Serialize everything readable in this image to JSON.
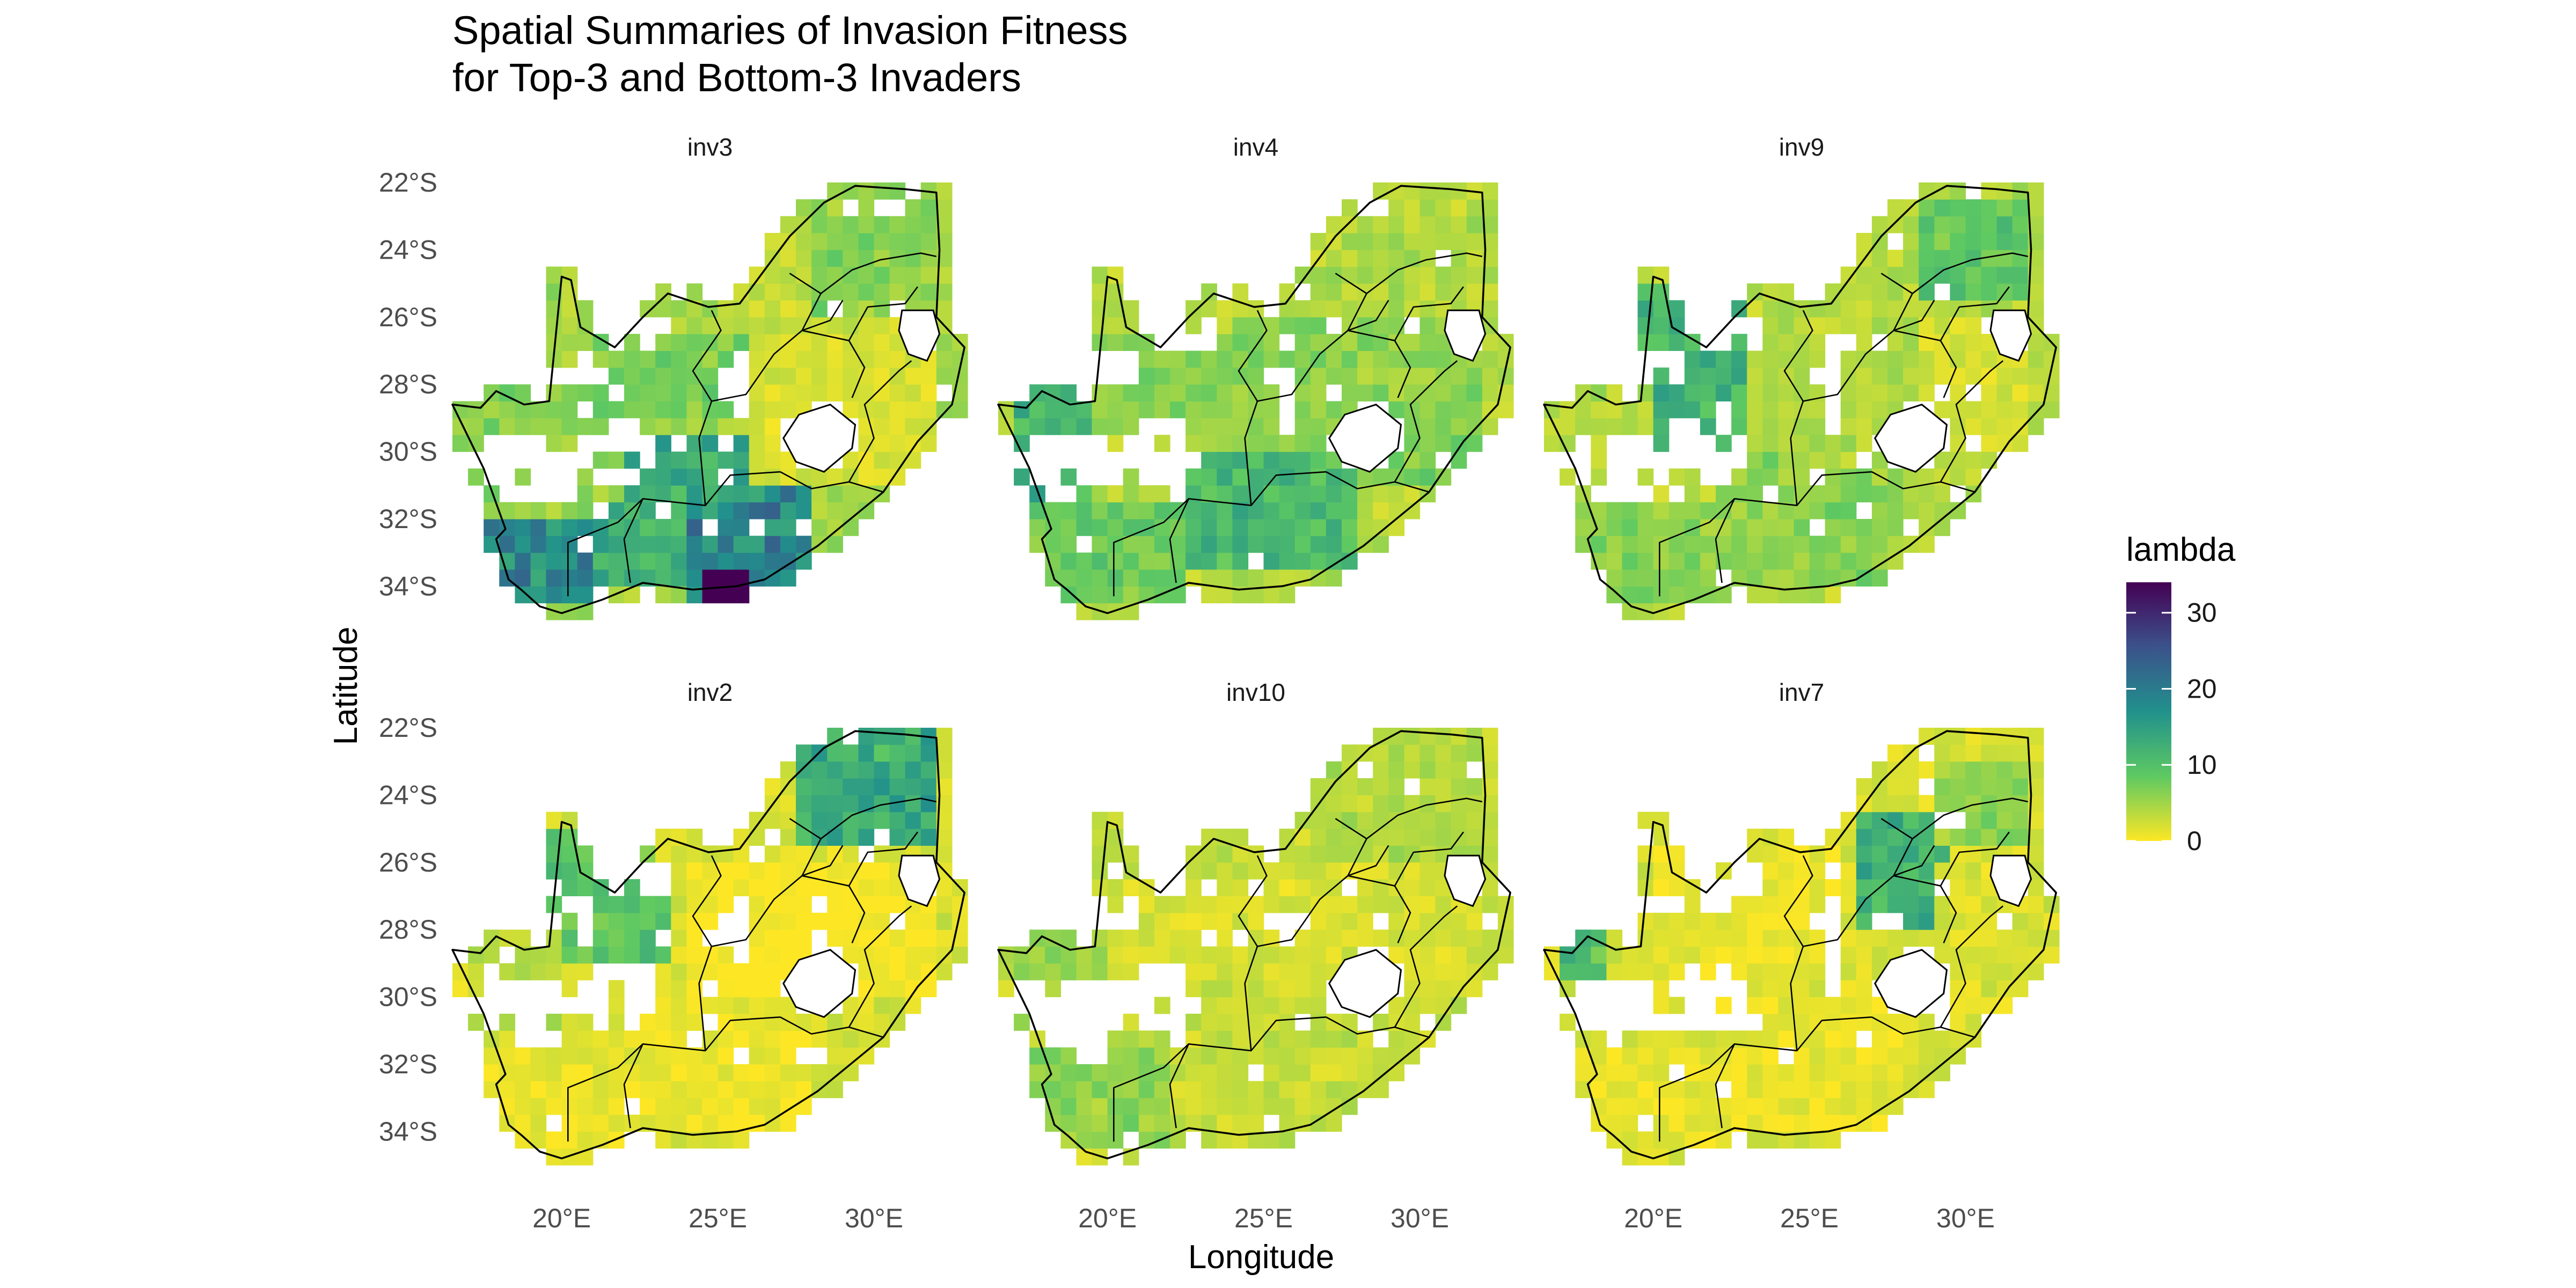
{
  "chart_data": {
    "type": "heatmap",
    "title": [
      "Spatial Summaries of Invasion Fitness",
      "for Top-3 and Bottom-3 Invaders"
    ],
    "xlabel": "Longitude",
    "ylabel": "Latitude",
    "x_ticks": [
      "20°E",
      "25°E",
      "30°E"
    ],
    "y_ticks": [
      "22°S",
      "24°S",
      "26°S",
      "28°S",
      "30°S",
      "32°S",
      "34°S"
    ],
    "x_tick_values": [
      20,
      25,
      30
    ],
    "y_tick_values": [
      -22,
      -24,
      -26,
      -28,
      -30,
      -32,
      -34
    ],
    "xlim": [
      16.5,
      33
    ],
    "ylim": [
      -35,
      -22
    ],
    "legend": {
      "title": "lambda",
      "ticks": [
        "0",
        "10",
        "20",
        "30"
      ],
      "tick_values": [
        0,
        10,
        20,
        30
      ],
      "range": [
        0,
        34
      ],
      "colors": [
        "#fde725",
        "#5ec962",
        "#21918c",
        "#3b528b",
        "#440154"
      ],
      "placement": "right"
    },
    "grid": false,
    "panels": [
      {
        "name": "inv3",
        "regions": [
          {
            "lon": [
              17,
              21
            ],
            "lat": [
              -34.5,
              -32
            ],
            "value": 18
          },
          {
            "lon": [
              21,
              24
            ],
            "lat": [
              -34,
              -31.5
            ],
            "value": 13
          },
          {
            "lon": [
              24,
              28
            ],
            "lat": [
              -34.5,
              -31
            ],
            "value": 19
          },
          {
            "lon": [
              22,
              27
            ],
            "lat": [
              -31.5,
              -29.5
            ],
            "value": 14
          },
          {
            "lon": [
              17,
              22
            ],
            "lat": [
              -31.5,
              -28
            ],
            "value": 6
          },
          {
            "lon": [
              21,
              26
            ],
            "lat": [
              -29,
              -26.5
            ],
            "value": 7
          },
          {
            "lon": [
              25,
              31
            ],
            "lat": [
              -26.5,
              -23
            ],
            "value": 3
          },
          {
            "lon": [
              28,
              32
            ],
            "lat": [
              -26,
              -22
            ],
            "value": 6
          },
          {
            "lon": [
              26,
              32
            ],
            "lat": [
              -31,
              -26.5
            ],
            "value": 2
          }
        ],
        "peak": {
          "lon": 25.2,
          "lat": -34.2,
          "value": 34
        }
      },
      {
        "name": "inv4",
        "regions": [
          {
            "lon": [
              22.5,
              28
            ],
            "lat": [
              -33.5,
              -30
            ],
            "value": 11
          },
          {
            "lon": [
              17,
              19.5
            ],
            "lat": [
              -31.5,
              -28
            ],
            "value": 12
          },
          {
            "lon": [
              17,
              22.5
            ],
            "lat": [
              -34.5,
              -31.5
            ],
            "value": 8
          },
          {
            "lon": [
              19.5,
              25
            ],
            "lat": [
              -29.5,
              -26.5
            ],
            "value": 6
          },
          {
            "lon": [
              24,
              32
            ],
            "lat": [
              -30,
              -26
            ],
            "value": 6
          },
          {
            "lon": [
              27,
              32
            ],
            "lat": [
              -26,
              -22
            ],
            "value": 4
          },
          {
            "lon": [
              28,
              32
            ],
            "lat": [
              -31,
              -29
            ],
            "value": 7
          }
        ]
      },
      {
        "name": "inv9",
        "regions": [
          {
            "lon": [
              19.5,
              23
            ],
            "lat": [
              -30,
              -25
            ],
            "value": 12
          },
          {
            "lon": [
              28.5,
              32
            ],
            "lat": [
              -25.5,
              -22.5
            ],
            "value": 9
          },
          {
            "lon": [
              17,
              22
            ],
            "lat": [
              -34.5,
              -31.5
            ],
            "value": 6
          },
          {
            "lon": [
              22,
              28
            ],
            "lat": [
              -34,
              -30
            ],
            "value": 6
          },
          {
            "lon": [
              24,
              28.5
            ],
            "lat": [
              -30.5,
              -26
            ],
            "value": 4
          },
          {
            "lon": [
              28.5,
              32
            ],
            "lat": [
              -30,
              -26
            ],
            "value": 2
          },
          {
            "lon": [
              17,
              20
            ],
            "lat": [
              -31,
              -28
            ],
            "value": 4
          }
        ]
      },
      {
        "name": "inv2",
        "regions": [
          {
            "lon": [
              27.5,
              32
            ],
            "lat": [
              -25.5,
              -22
            ],
            "value": 13
          },
          {
            "lon": [
              19.5,
              23.5
            ],
            "lat": [
              -29,
              -25
            ],
            "value": 9
          },
          {
            "lon": [
              17,
              22
            ],
            "lat": [
              -34.5,
              -31.5
            ],
            "value": 1
          },
          {
            "lon": [
              22,
              28
            ],
            "lat": [
              -34,
              -30
            ],
            "value": 1
          },
          {
            "lon": [
              17,
              20
            ],
            "lat": [
              -31,
              -28
            ],
            "value": 4
          },
          {
            "lon": [
              23,
              27.5
            ],
            "lat": [
              -26,
              -23
            ],
            "value": 2
          },
          {
            "lon": [
              24,
              32
            ],
            "lat": [
              -30,
              -26
            ],
            "value": 0
          }
        ]
      },
      {
        "name": "inv10",
        "regions": [
          {
            "lon": [
              17,
              22
            ],
            "lat": [
              -34.5,
              -31.5
            ],
            "value": 6
          },
          {
            "lon": [
              22,
              28
            ],
            "lat": [
              -34,
              -30
            ],
            "value": 3
          },
          {
            "lon": [
              17,
              20
            ],
            "lat": [
              -31,
              -28
            ],
            "value": 5
          },
          {
            "lon": [
              20,
              25
            ],
            "lat": [
              -29.5,
              -26.5
            ],
            "value": 2
          },
          {
            "lon": [
              25,
              32
            ],
            "lat": [
              -30,
              -26
            ],
            "value": 2
          },
          {
            "lon": [
              27,
              32
            ],
            "lat": [
              -26,
              -22
            ],
            "value": 4
          }
        ]
      },
      {
        "name": "inv7",
        "regions": [
          {
            "lon": [
              26.5,
              29.5
            ],
            "lat": [
              -28,
              -24.5
            ],
            "value": 12
          },
          {
            "lon": [
              17,
              18.5
            ],
            "lat": [
              -29.5,
              -28
            ],
            "value": 10
          },
          {
            "lon": [
              29,
              32
            ],
            "lat": [
              -25.5,
              -23
            ],
            "value": 6
          },
          {
            "lon": [
              17,
              22
            ],
            "lat": [
              -34.5,
              -31.5
            ],
            "value": 1
          },
          {
            "lon": [
              22,
              28
            ],
            "lat": [
              -34,
              -30
            ],
            "value": 1
          },
          {
            "lon": [
              20,
              26
            ],
            "lat": [
              -29.5,
              -25.5
            ],
            "value": 1
          },
          {
            "lon": [
              29,
              32
            ],
            "lat": [
              -30,
              -26
            ],
            "value": 2
          }
        ]
      }
    ]
  }
}
